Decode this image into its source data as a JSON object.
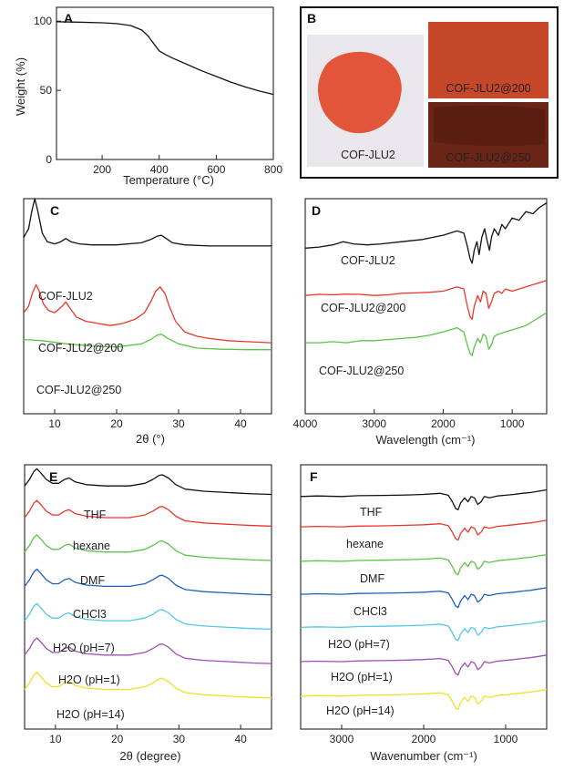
{
  "panel_labels": {
    "A": "A",
    "B": "B",
    "C": "C",
    "D": "D",
    "E": "E",
    "F": "F"
  },
  "photos": [
    {
      "label": "COF-JLU2",
      "color": "#e2553a",
      "bg": "#e9e7ec"
    },
    {
      "label": "COF-JLU2@200",
      "color": "#c24a2a",
      "bg": "#c7472b"
    },
    {
      "label": "COF-JLU2@250",
      "color": "#5a1d12",
      "bg": "#6a2516"
    }
  ],
  "chart_data": [
    {
      "id": "A",
      "type": "line",
      "title": "",
      "xlabel": "Temperature (°C)",
      "ylabel": "Weight (%)",
      "xlim": [
        40,
        800
      ],
      "ylim": [
        0,
        110
      ],
      "xticks": [
        200,
        400,
        600,
        800
      ],
      "yticks": [
        0,
        50,
        100
      ],
      "series": [
        {
          "color": "#111111",
          "x": [
            40,
            100,
            200,
            250,
            300,
            340,
            360,
            380,
            400,
            420,
            450,
            500,
            550,
            600,
            650,
            700,
            750,
            800
          ],
          "y": [
            99.5,
            99.3,
            98.8,
            98.2,
            96.8,
            93.5,
            89.5,
            84,
            78.5,
            76,
            73,
            68.5,
            64,
            60,
            56,
            52.5,
            49.5,
            47
          ]
        }
      ]
    },
    {
      "id": "C",
      "type": "line",
      "title": "",
      "xlabel": "2θ (°)",
      "ylabel": "",
      "xlim": [
        5,
        45
      ],
      "ylim": [
        0,
        1
      ],
      "xticks": [
        10,
        20,
        30,
        40
      ],
      "series": [
        {
          "name": "COF-JLU2",
          "color": "#111111",
          "x": [
            5,
            5.8,
            6.3,
            6.8,
            7.3,
            8,
            8.8,
            10,
            11,
            11.8,
            12.6,
            14,
            16,
            20,
            24,
            25.5,
            26.5,
            27.2,
            28,
            29,
            31,
            35,
            40,
            45
          ],
          "y": [
            0.82,
            0.86,
            0.94,
            1.0,
            0.94,
            0.84,
            0.8,
            0.79,
            0.8,
            0.815,
            0.8,
            0.79,
            0.785,
            0.785,
            0.795,
            0.81,
            0.825,
            0.83,
            0.815,
            0.795,
            0.785,
            0.78,
            0.78,
            0.78
          ]
        },
        {
          "name": "COF-JLU2@200",
          "color": "#e8382a",
          "x": [
            5,
            5.8,
            6.4,
            7,
            7.5,
            8.2,
            9,
            10,
            11.2,
            11.8,
            12.5,
            13.5,
            15,
            17,
            19,
            21,
            23,
            24.5,
            25.5,
            26.3,
            27,
            27.8,
            28.5,
            29.5,
            31,
            33,
            35,
            38,
            41,
            45
          ],
          "y": [
            0.47,
            0.5,
            0.56,
            0.6,
            0.57,
            0.51,
            0.48,
            0.47,
            0.5,
            0.52,
            0.49,
            0.45,
            0.43,
            0.42,
            0.41,
            0.42,
            0.44,
            0.47,
            0.52,
            0.57,
            0.59,
            0.56,
            0.5,
            0.43,
            0.38,
            0.36,
            0.35,
            0.34,
            0.335,
            0.33
          ]
        },
        {
          "name": "COF-JLU2@250",
          "color": "#5cc24a",
          "x": [
            5,
            8,
            12,
            16,
            20,
            24,
            25.5,
            26.5,
            27.2,
            28.3,
            30,
            33,
            37,
            41,
            45
          ],
          "y": [
            0.345,
            0.34,
            0.325,
            0.315,
            0.31,
            0.325,
            0.345,
            0.365,
            0.37,
            0.35,
            0.325,
            0.305,
            0.3,
            0.298,
            0.298
          ]
        }
      ],
      "annotations": [
        "COF-JLU2",
        "COF-JLU2@200",
        "COF-JLU2@250"
      ]
    },
    {
      "id": "D",
      "type": "line",
      "title": "",
      "xlabel": "Wavelength (cm⁻¹)",
      "ylabel": "",
      "xlim": [
        4000,
        500
      ],
      "ylim": [
        0,
        1
      ],
      "x_reversed": true,
      "xticks": [
        4000,
        3000,
        2000,
        1000
      ],
      "series": [
        {
          "name": "COF-JLU2",
          "color": "#111111",
          "x": [
            4000,
            3800,
            3600,
            3450,
            3300,
            3100,
            2900,
            2600,
            2300,
            2000,
            1800,
            1700,
            1650,
            1610,
            1580,
            1550,
            1510,
            1480,
            1440,
            1400,
            1360,
            1330,
            1300,
            1260,
            1200,
            1150,
            1100,
            1000,
            900,
            800,
            700,
            600,
            500
          ],
          "y": [
            0.77,
            0.775,
            0.785,
            0.8,
            0.79,
            0.785,
            0.79,
            0.8,
            0.81,
            0.83,
            0.85,
            0.84,
            0.78,
            0.72,
            0.7,
            0.76,
            0.8,
            0.74,
            0.82,
            0.86,
            0.8,
            0.76,
            0.82,
            0.86,
            0.83,
            0.88,
            0.86,
            0.91,
            0.9,
            0.94,
            0.93,
            0.96,
            0.98
          ]
        },
        {
          "name": "COF-JLU2@200",
          "color": "#e8382a",
          "x": [
            4000,
            3800,
            3600,
            3400,
            3200,
            3000,
            2800,
            2600,
            2400,
            2200,
            2000,
            1800,
            1700,
            1650,
            1610,
            1580,
            1550,
            1500,
            1460,
            1420,
            1380,
            1340,
            1300,
            1260,
            1200,
            1150,
            1100,
            1000,
            900,
            800,
            700,
            600,
            500
          ],
          "y": [
            0.55,
            0.555,
            0.553,
            0.556,
            0.555,
            0.55,
            0.553,
            0.56,
            0.562,
            0.565,
            0.57,
            0.59,
            0.58,
            0.5,
            0.45,
            0.44,
            0.5,
            0.55,
            0.52,
            0.57,
            0.56,
            0.49,
            0.52,
            0.56,
            0.57,
            0.56,
            0.58,
            0.57,
            0.58,
            0.59,
            0.6,
            0.61,
            0.62
          ]
        },
        {
          "name": "COF-JLU2@250",
          "color": "#5cc24a",
          "x": [
            4000,
            3800,
            3600,
            3400,
            3200,
            3000,
            2800,
            2600,
            2400,
            2200,
            2000,
            1800,
            1700,
            1650,
            1610,
            1580,
            1550,
            1500,
            1460,
            1420,
            1380,
            1340,
            1300,
            1260,
            1200,
            1100,
            1000,
            900,
            800,
            700,
            600,
            500
          ],
          "y": [
            0.33,
            0.33,
            0.335,
            0.33,
            0.34,
            0.34,
            0.345,
            0.35,
            0.355,
            0.365,
            0.38,
            0.4,
            0.38,
            0.32,
            0.28,
            0.27,
            0.31,
            0.35,
            0.33,
            0.37,
            0.36,
            0.3,
            0.32,
            0.36,
            0.37,
            0.38,
            0.39,
            0.4,
            0.41,
            0.43,
            0.45,
            0.47
          ]
        }
      ],
      "annotations": [
        "COF-JLU2",
        "COF-JLU2@200",
        "COF-JLU2@250"
      ]
    },
    {
      "id": "E",
      "type": "line",
      "title": "",
      "xlabel": "2θ (degree)",
      "ylabel": "",
      "xlim": [
        5,
        45
      ],
      "ylim": [
        0,
        1
      ],
      "xticks": [
        10,
        20,
        30,
        40
      ],
      "profile": {
        "x": [
          5,
          5.8,
          6.5,
          7,
          7.6,
          8.5,
          9.5,
          10.5,
          11.5,
          12.2,
          13.2,
          15,
          18,
          22,
          24.5,
          25.8,
          26.8,
          27.3,
          28.3,
          29.5,
          31,
          34,
          38,
          42,
          45
        ],
        "shape": [
          0.02,
          0.045,
          0.075,
          0.085,
          0.07,
          0.045,
          0.03,
          0.03,
          0.045,
          0.05,
          0.035,
          0.025,
          0.02,
          0.02,
          0.03,
          0.045,
          0.06,
          0.062,
          0.05,
          0.025,
          0.008,
          0.0,
          -0.005,
          -0.01,
          -0.012
        ]
      },
      "series": [
        {
          "name": "THF",
          "color": "#111111",
          "offset": 0.9
        },
        {
          "name": "hexane",
          "color": "#e8382a",
          "offset": 0.78
        },
        {
          "name": "DMF",
          "color": "#5cc24a",
          "offset": 0.65
        },
        {
          "name": "CHCl3",
          "color": "#1f5fbf",
          "offset": 0.52
        },
        {
          "name": "H2O (pH=7)",
          "color": "#50c8e8",
          "offset": 0.39
        },
        {
          "name": "H2O (pH=1)",
          "color": "#a050b4",
          "offset": 0.26
        },
        {
          "name": "H2O (pH=14)",
          "color": "#f0e022",
          "offset": 0.13
        }
      ],
      "annotations": [
        "THF",
        "hexane",
        "DMF",
        "CHCl3",
        "H2O (pH=7)",
        "H2O (pH=1)",
        "H2O (pH=14)"
      ]
    },
    {
      "id": "F",
      "type": "line",
      "title": "",
      "xlabel": "Wavenumber (cm⁻¹)",
      "ylabel": "",
      "xlim": [
        3500,
        500
      ],
      "ylim": [
        0,
        1
      ],
      "x_reversed": true,
      "xticks": [
        3000,
        2000,
        1000
      ],
      "profile": {
        "x": [
          3500,
          3300,
          3000,
          2800,
          2500,
          2200,
          2000,
          1800,
          1700,
          1650,
          1610,
          1580,
          1550,
          1500,
          1460,
          1420,
          1380,
          1340,
          1300,
          1260,
          1200,
          1100,
          1000,
          900,
          800,
          700,
          600,
          500
        ],
        "shape": [
          0,
          0.002,
          0.0,
          0.003,
          0.004,
          0.006,
          0.008,
          0.012,
          0.005,
          -0.02,
          -0.045,
          -0.05,
          -0.025,
          -0.005,
          -0.02,
          0.0,
          -0.005,
          -0.03,
          -0.02,
          0.0,
          -0.005,
          0.002,
          0.005,
          0.008,
          0.012,
          0.015,
          0.02,
          0.025
        ]
      },
      "series": [
        {
          "name": "THF",
          "color": "#111111",
          "offset": 0.88
        },
        {
          "name": "hexane",
          "color": "#e8382a",
          "offset": 0.765
        },
        {
          "name": "DMF",
          "color": "#5cc24a",
          "offset": 0.635
        },
        {
          "name": "CHCl3",
          "color": "#1f5fbf",
          "offset": 0.51
        },
        {
          "name": "H2O (pH=7)",
          "color": "#50c8e8",
          "offset": 0.385
        },
        {
          "name": "H2O (pH=1)",
          "color": "#a050b4",
          "offset": 0.255
        },
        {
          "name": "H2O (pH=14)",
          "color": "#f0e022",
          "offset": 0.125
        }
      ],
      "annotations": [
        "THF",
        "hexane",
        "DMF",
        "CHCl3",
        "H2O (pH=7)",
        "H2O (pH=1)",
        "H2O (pH=14)"
      ]
    }
  ]
}
